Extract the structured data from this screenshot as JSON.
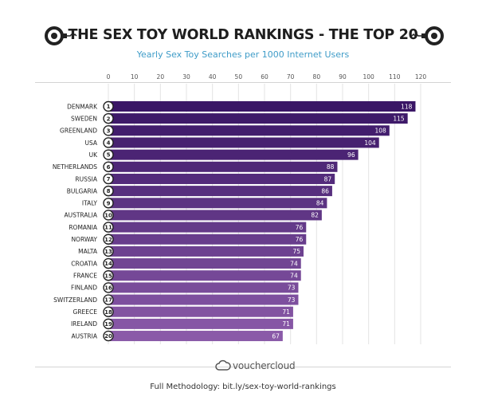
{
  "header": {
    "title": "THE SEX TOY WORLD RANKINGS - THE TOP 20",
    "subtitle": "Yearly Sex Toy Searches per 1000 Internet Users",
    "left_icon": "handcuff-icon",
    "right_icon": "handcuff-icon"
  },
  "footer": {
    "logo_text": "vouchercloud",
    "methodology": "Full Methodology: bit.ly/sex-toy-world-rankings"
  },
  "chart_data": {
    "type": "bar",
    "orientation": "horizontal",
    "title": "THE SEX TOY WORLD RANKINGS - THE TOP 20",
    "subtitle": "Yearly Sex Toy Searches per 1000 Internet Users",
    "xlim": [
      0,
      120
    ],
    "xticks": [
      0,
      10,
      20,
      30,
      40,
      50,
      60,
      70,
      80,
      90,
      100,
      110,
      120
    ],
    "grid": true,
    "categories": [
      "DENMARK",
      "SWEDEN",
      "GREENLAND",
      "USA",
      "UK",
      "NETHERLANDS",
      "RUSSIA",
      "BULGARIA",
      "ITALY",
      "AUSTRALIA",
      "ROMANIA",
      "NORWAY",
      "MALTA",
      "CROATIA",
      "FRANCE",
      "FINLAND",
      "SWITZERLAND",
      "GREECE",
      "IRELAND",
      "AUSTRIA"
    ],
    "ranks": [
      1,
      2,
      3,
      4,
      5,
      6,
      7,
      8,
      9,
      10,
      11,
      12,
      13,
      14,
      15,
      16,
      17,
      18,
      19,
      20
    ],
    "values": [
      118,
      115,
      108,
      104,
      96,
      88,
      87,
      86,
      84,
      82,
      76,
      76,
      75,
      74,
      74,
      73,
      73,
      71,
      71,
      67
    ],
    "colors": {
      "top": "#3a1666",
      "bottom": "#8a5aa8"
    }
  }
}
